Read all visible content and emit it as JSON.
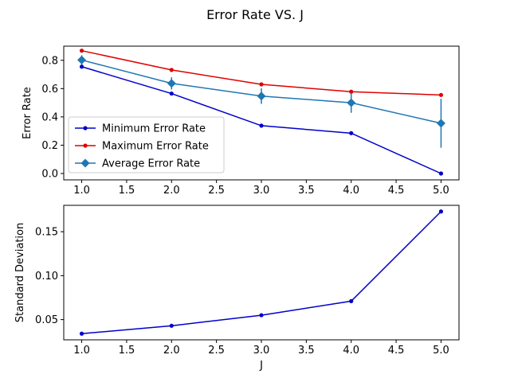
{
  "figure": {
    "title": "Error Rate VS. J"
  },
  "chart_data": [
    {
      "type": "line",
      "title": "",
      "xlabel": "",
      "ylabel": "Error Rate",
      "x": [
        1,
        2,
        3,
        4,
        5
      ],
      "xlim": [
        0.8,
        5.2
      ],
      "ylim": [
        -0.045,
        0.9
      ],
      "xticks": [
        "1.0",
        "1.5",
        "2.0",
        "2.5",
        "3.0",
        "3.5",
        "4.0",
        "4.5",
        "5.0"
      ],
      "xtick_values": [
        1.0,
        1.5,
        2.0,
        2.5,
        3.0,
        3.5,
        4.0,
        4.5,
        5.0
      ],
      "yticks": [
        "0.0",
        "0.2",
        "0.4",
        "0.6",
        "0.8"
      ],
      "ytick_values": [
        0.0,
        0.2,
        0.4,
        0.6,
        0.8
      ],
      "legend_position": "lower-left",
      "grid": false,
      "series": [
        {
          "name": "Minimum Error Rate",
          "color": "#0000cc",
          "marker": "dot",
          "values": [
            0.755,
            0.565,
            0.338,
            0.285,
            0.0
          ]
        },
        {
          "name": "Maximum Error Rate",
          "color": "#e00000",
          "marker": "dot",
          "values": [
            0.868,
            0.732,
            0.63,
            0.578,
            0.555
          ]
        },
        {
          "name": "Average Error Rate",
          "color": "#1f77b4",
          "marker": "diamond",
          "values": [
            0.802,
            0.637,
            0.547,
            0.5,
            0.355
          ],
          "error": [
            0.034,
            0.043,
            0.055,
            0.071,
            0.173
          ]
        }
      ]
    },
    {
      "type": "line",
      "title": "",
      "xlabel": "J",
      "ylabel": "Standard Deviation",
      "x": [
        1,
        2,
        3,
        4,
        5
      ],
      "xlim": [
        0.8,
        5.2
      ],
      "ylim": [
        0.027,
        0.18
      ],
      "xticks": [
        "1.0",
        "1.5",
        "2.0",
        "2.5",
        "3.0",
        "3.5",
        "4.0",
        "4.5",
        "5.0"
      ],
      "xtick_values": [
        1.0,
        1.5,
        2.0,
        2.5,
        3.0,
        3.5,
        4.0,
        4.5,
        5.0
      ],
      "yticks": [
        "0.05",
        "0.10",
        "0.15"
      ],
      "ytick_values": [
        0.05,
        0.1,
        0.15
      ],
      "grid": false,
      "series": [
        {
          "color": "#0000cc",
          "marker": "dot",
          "values": [
            0.034,
            0.043,
            0.055,
            0.071,
            0.173
          ]
        }
      ]
    }
  ]
}
